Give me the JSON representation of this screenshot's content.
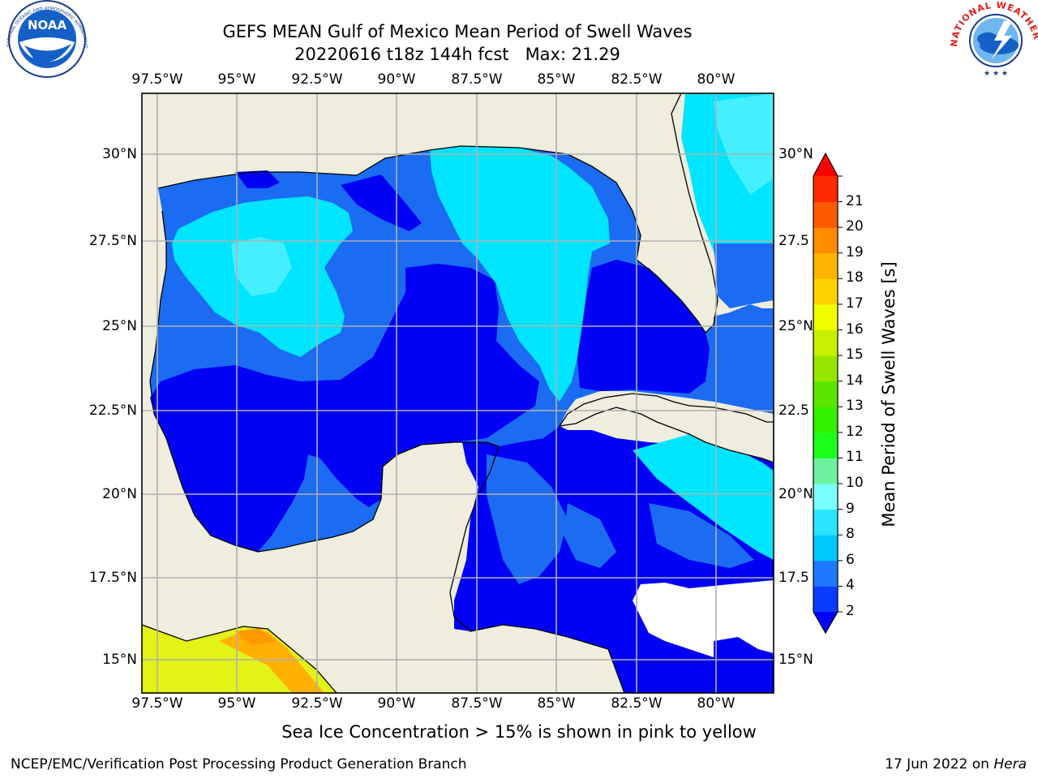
{
  "title": {
    "line1": "GEFS MEAN Gulf of Mexico Mean Period of Swell Waves",
    "line2": "20220616 t18z 144h fcst   Max: 21.29"
  },
  "logos": {
    "left": "NOAA",
    "left_ring": "NATIONAL OCEANIC AND ATMOSPHERIC ADMINISTRATION · U.S. DEPARTMENT OF COMMERCE",
    "right_ring": "NATIONAL WEATHER SERVICE"
  },
  "axes": {
    "lon_labels": [
      "97.5°W",
      "95°W",
      "92.5°W",
      "90°W",
      "87.5°W",
      "85°W",
      "82.5°W",
      "80°W"
    ],
    "lon_values": [
      -97.5,
      -95,
      -92.5,
      -90,
      -87.5,
      -85,
      -82.5,
      -80
    ],
    "lat_labels_left": [
      "30°N",
      "27.5°N",
      "25°N",
      "22.5°N",
      "20°N",
      "17.5°N",
      "15°N"
    ],
    "lat_labels_right": [
      "30°N",
      "27.5",
      "25°N",
      "22.5",
      "20°N",
      "17.5",
      "15°N"
    ],
    "lat_values": [
      30,
      27.5,
      25,
      22.5,
      20,
      17.5,
      15
    ],
    "lon_range": [
      -98,
      -78.2
    ],
    "lat_range": [
      14,
      32
    ],
    "grid": true
  },
  "colorbar": {
    "label": "Mean Period of Swell Waves [s]",
    "ticks": [
      "2",
      "4",
      "6",
      "8",
      "9",
      "10",
      "11",
      "12",
      "13",
      "14",
      "15",
      "16",
      "17",
      "18",
      "19",
      "20",
      "21"
    ],
    "colors": [
      "#0a3cff",
      "#1e78ff",
      "#00c8ff",
      "#28e6ff",
      "#78ffff",
      "#6ef2a0",
      "#1eff1e",
      "#32f000",
      "#5ae600",
      "#96e600",
      "#c8f000",
      "#f0ff00",
      "#ffd200",
      "#ffb400",
      "#ff8c00",
      "#ff5a00",
      "#ff2800"
    ],
    "extend_low_color": "#0000ff",
    "extend_high_color": "#ff0000"
  },
  "map_colors": {
    "land": "#eeedde",
    "ocean_low": "#0000f5",
    "ocean_mid": "#1b6cf2",
    "ocean_high": "#00e5ff",
    "ocean_cyan_light": "#44f0ff",
    "pacific_yellow": "#e3f316",
    "pacific_orange": "#ffb000"
  },
  "caption": "Sea Ice Concentration > 15% is shown in pink to yellow",
  "footer": {
    "left": "NCEP/EMC/Verification Post Processing Product Generation Branch",
    "right_date": "17 Jun 2022 on ",
    "right_host": "Hera"
  }
}
